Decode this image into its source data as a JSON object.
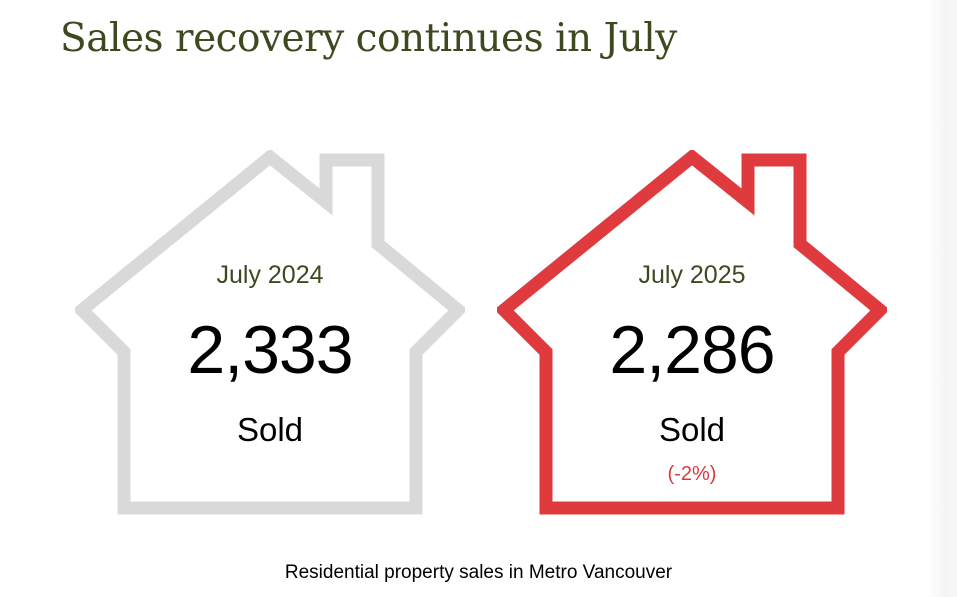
{
  "title": "Sales recovery continues in July",
  "cards": [
    {
      "period": "July 2024",
      "count": "2,333",
      "label": "Sold",
      "change": "",
      "outline_color": "#d9d9d9",
      "icon": "house-outline-icon"
    },
    {
      "period": "July 2025",
      "count": "2,286",
      "label": "Sold",
      "change": "(-2%)",
      "outline_color": "#df3b3e",
      "icon": "house-outline-icon"
    }
  ],
  "caption": "Residential property sales in Metro Vancouver",
  "colors": {
    "title": "#3d4a1f",
    "period": "#3d4a1f",
    "change": "#d93a3d"
  }
}
